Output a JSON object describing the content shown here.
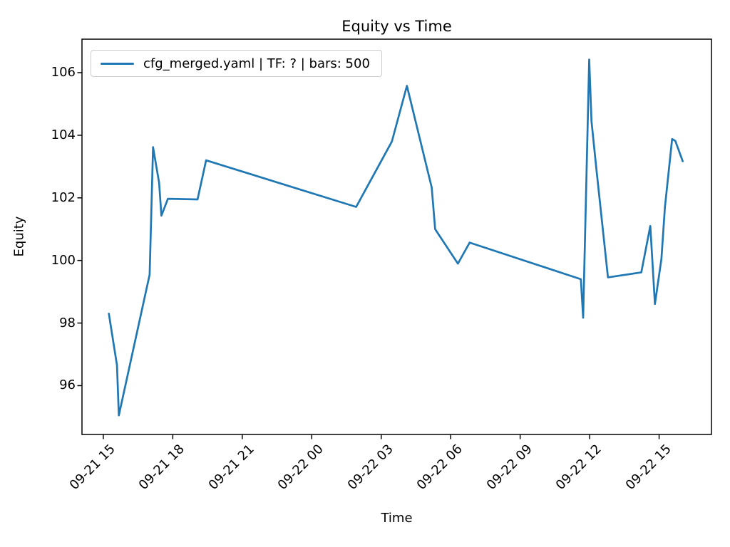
{
  "chart_data": {
    "type": "line",
    "title": "Equity vs Time",
    "xlabel": "Time",
    "ylabel": "Equity",
    "grid": false,
    "legend_position": "upper left",
    "background_color": "#ffffff",
    "axis_color": "#000000",
    "x_units": "hours since 09-21 00:00",
    "xlim_hours": [
      14.08,
      41.26
    ],
    "ylim": [
      94.44,
      107.07
    ],
    "x_ticks": [
      {
        "hours": 15,
        "label": "09-21 15"
      },
      {
        "hours": 18,
        "label": "09-21 18"
      },
      {
        "hours": 21,
        "label": "09-21 21"
      },
      {
        "hours": 24,
        "label": "09-22 00"
      },
      {
        "hours": 27,
        "label": "09-22 03"
      },
      {
        "hours": 30,
        "label": "09-22 06"
      },
      {
        "hours": 33,
        "label": "09-22 09"
      },
      {
        "hours": 36,
        "label": "09-22 12"
      },
      {
        "hours": 39,
        "label": "09-22 15"
      }
    ],
    "y_ticks": [
      96,
      98,
      100,
      102,
      104,
      106
    ],
    "series": [
      {
        "name": "cfg_merged.yaml | TF: ? | bars: 500",
        "color": "#1f77b4",
        "points": [
          [
            15.24,
            98.3
          ],
          [
            15.59,
            96.65
          ],
          [
            15.67,
            95.05
          ],
          [
            17.0,
            99.55
          ],
          [
            17.15,
            103.62
          ],
          [
            17.41,
            102.48
          ],
          [
            17.51,
            101.43
          ],
          [
            17.79,
            101.97
          ],
          [
            19.07,
            101.95
          ],
          [
            19.44,
            103.2
          ],
          [
            25.92,
            101.71
          ],
          [
            27.46,
            103.8
          ],
          [
            28.11,
            105.58
          ],
          [
            29.18,
            102.33
          ],
          [
            29.33,
            101.0
          ],
          [
            30.31,
            99.9
          ],
          [
            30.82,
            100.57
          ],
          [
            35.62,
            99.4
          ],
          [
            35.72,
            98.17
          ],
          [
            35.98,
            106.42
          ],
          [
            36.08,
            104.45
          ],
          [
            36.28,
            103.0
          ],
          [
            36.79,
            99.46
          ],
          [
            38.23,
            99.62
          ],
          [
            38.62,
            101.1
          ],
          [
            38.82,
            98.61
          ],
          [
            39.1,
            100.05
          ],
          [
            39.25,
            101.7
          ],
          [
            39.56,
            103.88
          ],
          [
            39.7,
            103.82
          ],
          [
            40.02,
            103.17
          ]
        ]
      }
    ]
  }
}
